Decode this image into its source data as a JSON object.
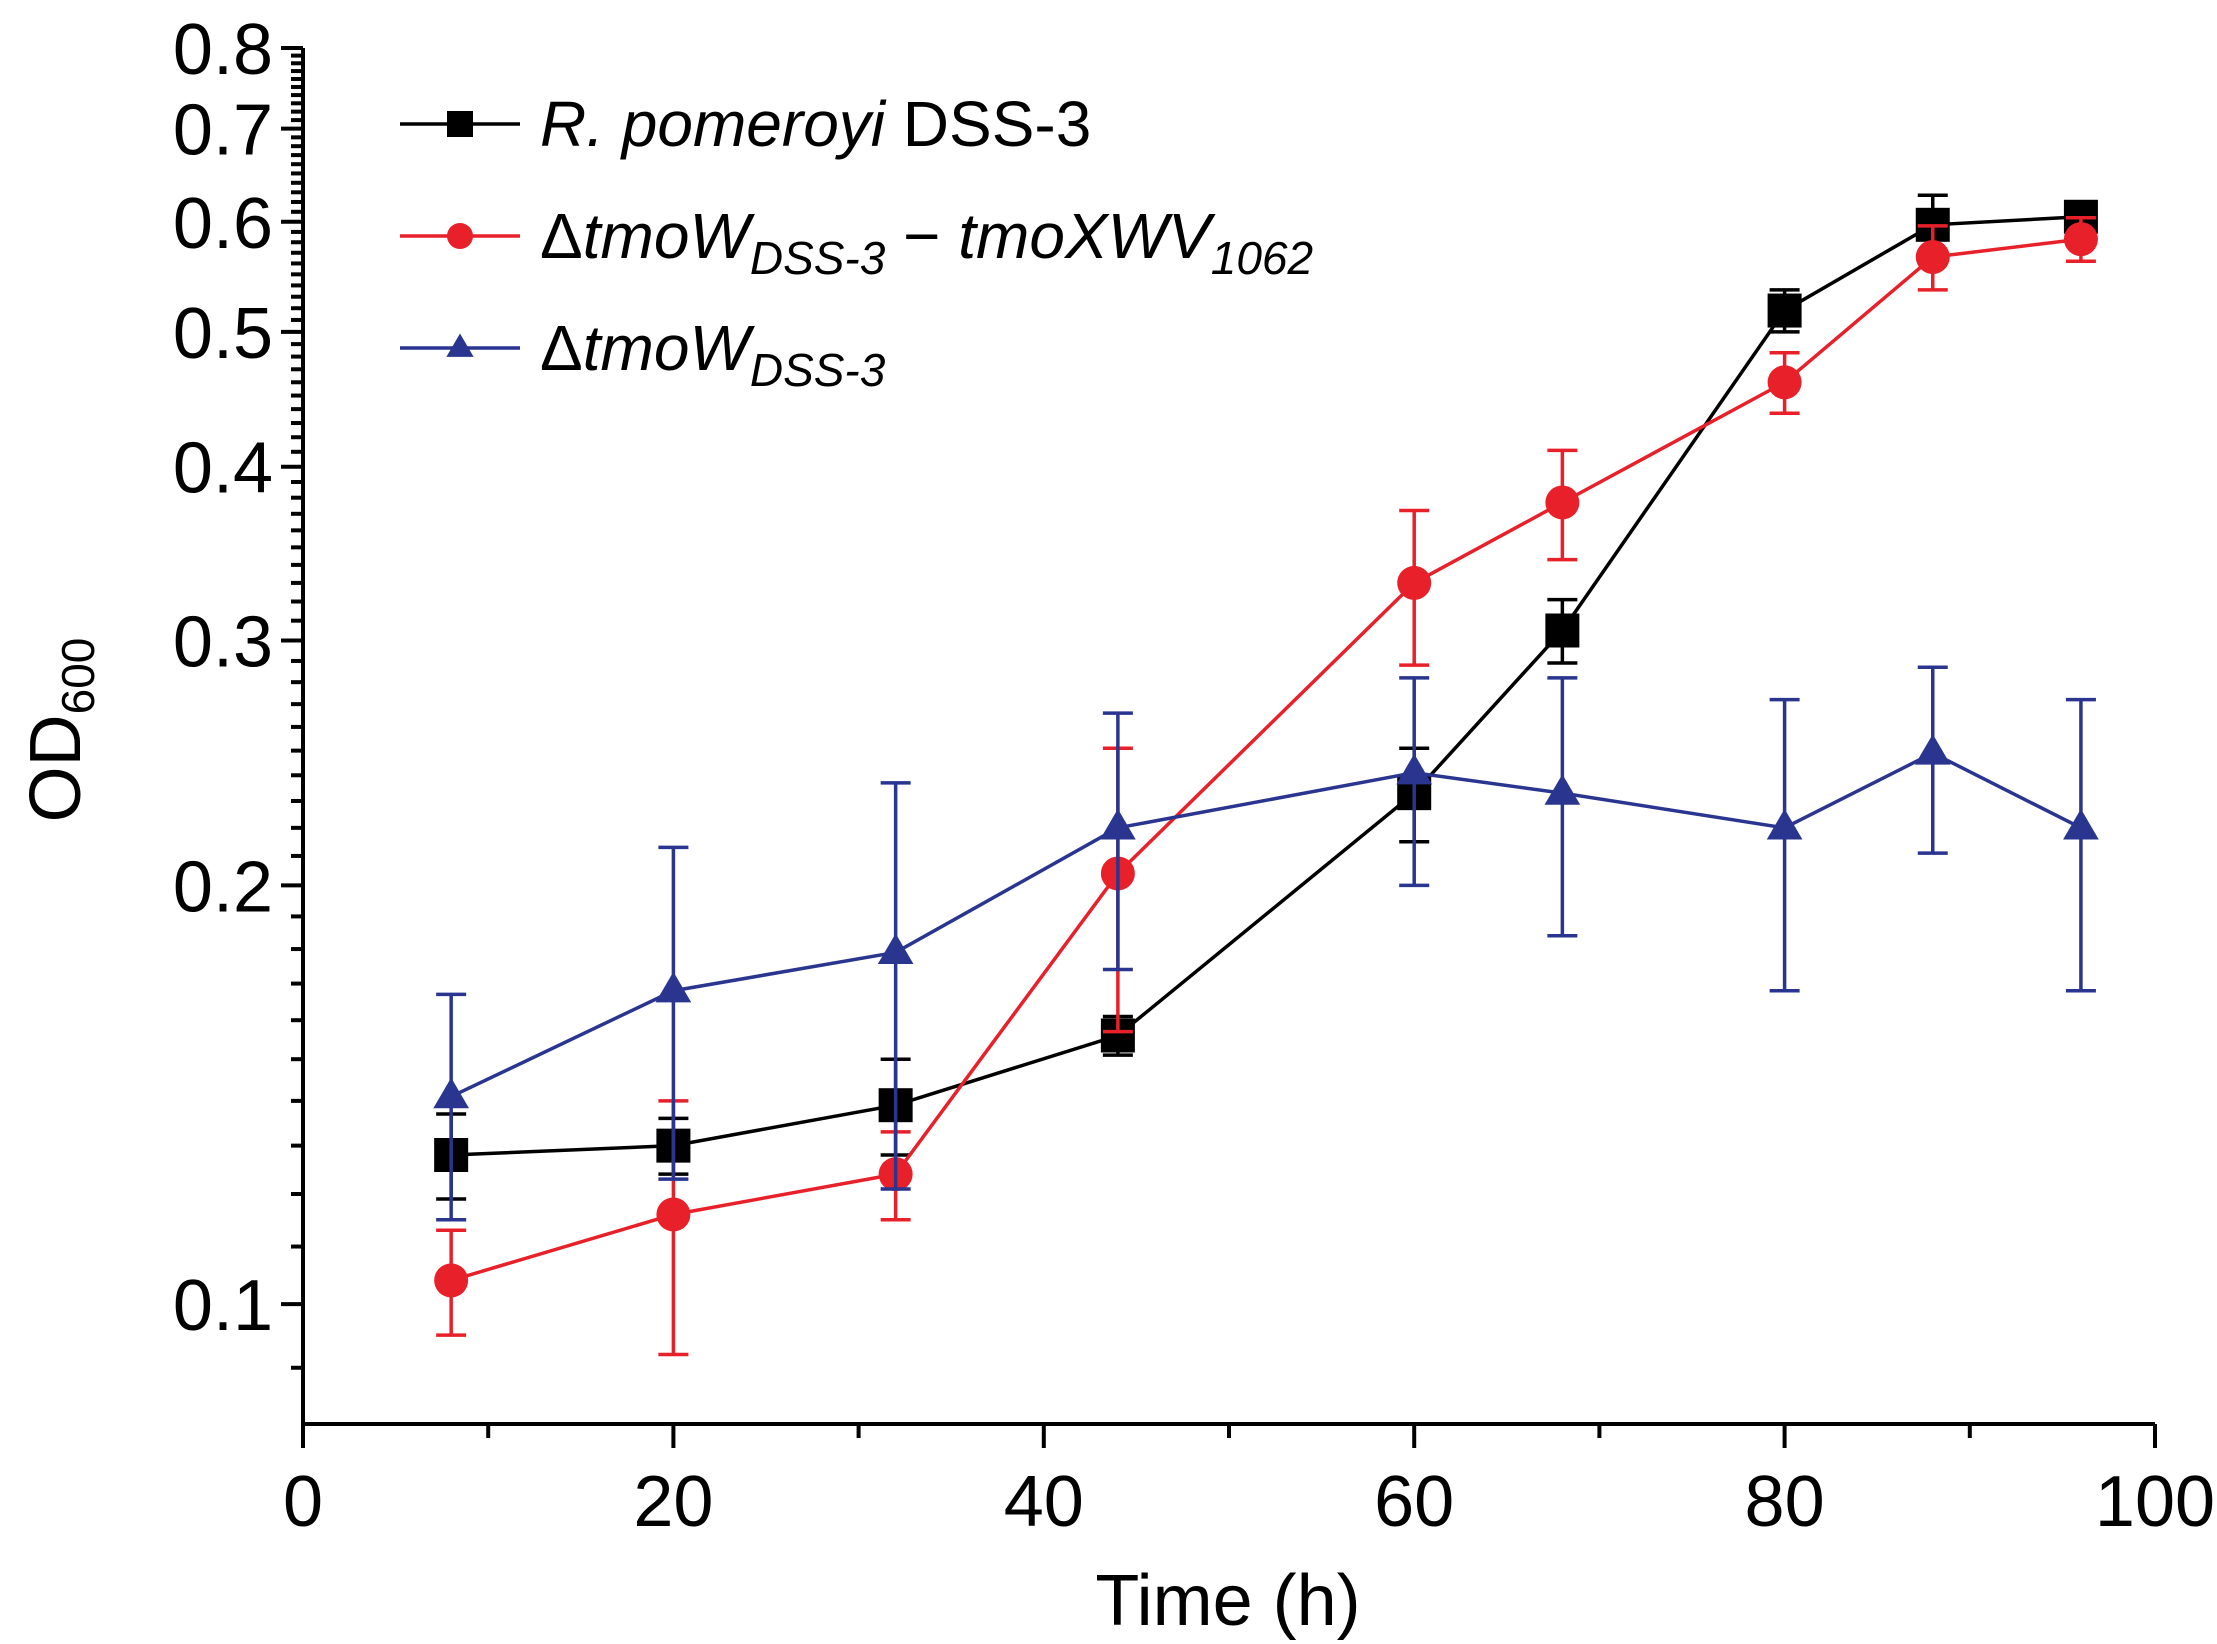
{
  "chart_data": {
    "type": "line",
    "xlabel": "Time (h)",
    "ylabel_main": "OD",
    "ylabel_sub": "600",
    "y_scale": "log",
    "xlim": [
      0,
      100
    ],
    "ylim": [
      0.082,
      0.8
    ],
    "x_ticks": [
      {
        "value": 0,
        "label": "0"
      },
      {
        "value": 20,
        "label": "20"
      },
      {
        "value": 40,
        "label": "40"
      },
      {
        "value": 60,
        "label": "60"
      },
      {
        "value": 80,
        "label": "80"
      },
      {
        "value": 100,
        "label": "100"
      }
    ],
    "x_minor_ticks": [
      10,
      30,
      50,
      70,
      90
    ],
    "y_ticks": [
      {
        "value": 0.1,
        "label": "0.1"
      },
      {
        "value": 0.2,
        "label": "0.2"
      },
      {
        "value": 0.3,
        "label": "0.3"
      },
      {
        "value": 0.4,
        "label": "0.4"
      },
      {
        "value": 0.5,
        "label": "0.5"
      },
      {
        "value": 0.6,
        "label": "0.6"
      },
      {
        "value": 0.7,
        "label": "0.7"
      },
      {
        "value": 0.8,
        "label": "0.8"
      }
    ],
    "y_minor_ticks": [
      0.09,
      0.11,
      0.12,
      0.13,
      0.14,
      0.15,
      0.16,
      0.17,
      0.18,
      0.19,
      0.21,
      0.22,
      0.23,
      0.24,
      0.25,
      0.26,
      0.27,
      0.28,
      0.29,
      0.31,
      0.32,
      0.33,
      0.34,
      0.35,
      0.36,
      0.37,
      0.38,
      0.39,
      0.41,
      0.42,
      0.43,
      0.44,
      0.45,
      0.46,
      0.47,
      0.48,
      0.49,
      0.51,
      0.52,
      0.53,
      0.54,
      0.55,
      0.56,
      0.57,
      0.58,
      0.59,
      0.61,
      0.62,
      0.63,
      0.64,
      0.65,
      0.66,
      0.67,
      0.68,
      0.69,
      0.71,
      0.72,
      0.73,
      0.74,
      0.75,
      0.76,
      0.77,
      0.78,
      0.79
    ],
    "series": [
      {
        "id": "wt",
        "legend": [
          {
            "text": "R. pomeroyi",
            "italic": true
          },
          {
            "text": " DSS-3",
            "italic": false
          }
        ],
        "color": "#000000",
        "marker": "square",
        "x": [
          8,
          20,
          32,
          44,
          60,
          68,
          80,
          88,
          96
        ],
        "y": [
          0.128,
          0.13,
          0.139,
          0.156,
          0.233,
          0.305,
          0.518,
          0.597,
          0.605
        ],
        "err": [
          0.009,
          0.006,
          0.011,
          0.005,
          0.018,
          0.016,
          0.018,
          0.03,
          0.013
        ]
      },
      {
        "id": "comp",
        "legend": [
          {
            "text": "Δ",
            "italic": false
          },
          {
            "text": "tmoW",
            "italic": true
          },
          {
            "text": "DSS-3",
            "italic": true,
            "sub": true
          },
          {
            "text": " − ",
            "italic": false
          },
          {
            "text": "tmoXWV",
            "italic": true
          },
          {
            "text": "1062",
            "italic": true,
            "sub": true
          }
        ],
        "color": "#e8202a",
        "marker": "circle",
        "x": [
          8,
          20,
          32,
          44,
          60,
          68,
          80,
          88,
          96
        ],
        "y": [
          0.104,
          0.116,
          0.124,
          0.204,
          0.33,
          0.377,
          0.46,
          0.566,
          0.583
        ],
        "err": [
          0.009,
          0.024,
          0.009,
          0.047,
          0.042,
          0.034,
          0.023,
          0.03,
          0.021
        ]
      },
      {
        "id": "ko",
        "legend": [
          {
            "text": "Δ",
            "italic": false
          },
          {
            "text": "tmoW",
            "italic": true
          },
          {
            "text": "DSS-3",
            "italic": true,
            "sub": true
          }
        ],
        "color": "#2a3590",
        "marker": "triangle",
        "x": [
          8,
          20,
          32,
          44,
          60,
          68,
          80,
          88,
          96
        ],
        "y": [
          0.141,
          0.168,
          0.179,
          0.22,
          0.241,
          0.233,
          0.22,
          0.249,
          0.22
        ],
        "err": [
          0.026,
          0.045,
          0.058,
          0.046,
          0.041,
          0.049,
          0.052,
          0.038,
          0.052
        ]
      }
    ]
  }
}
